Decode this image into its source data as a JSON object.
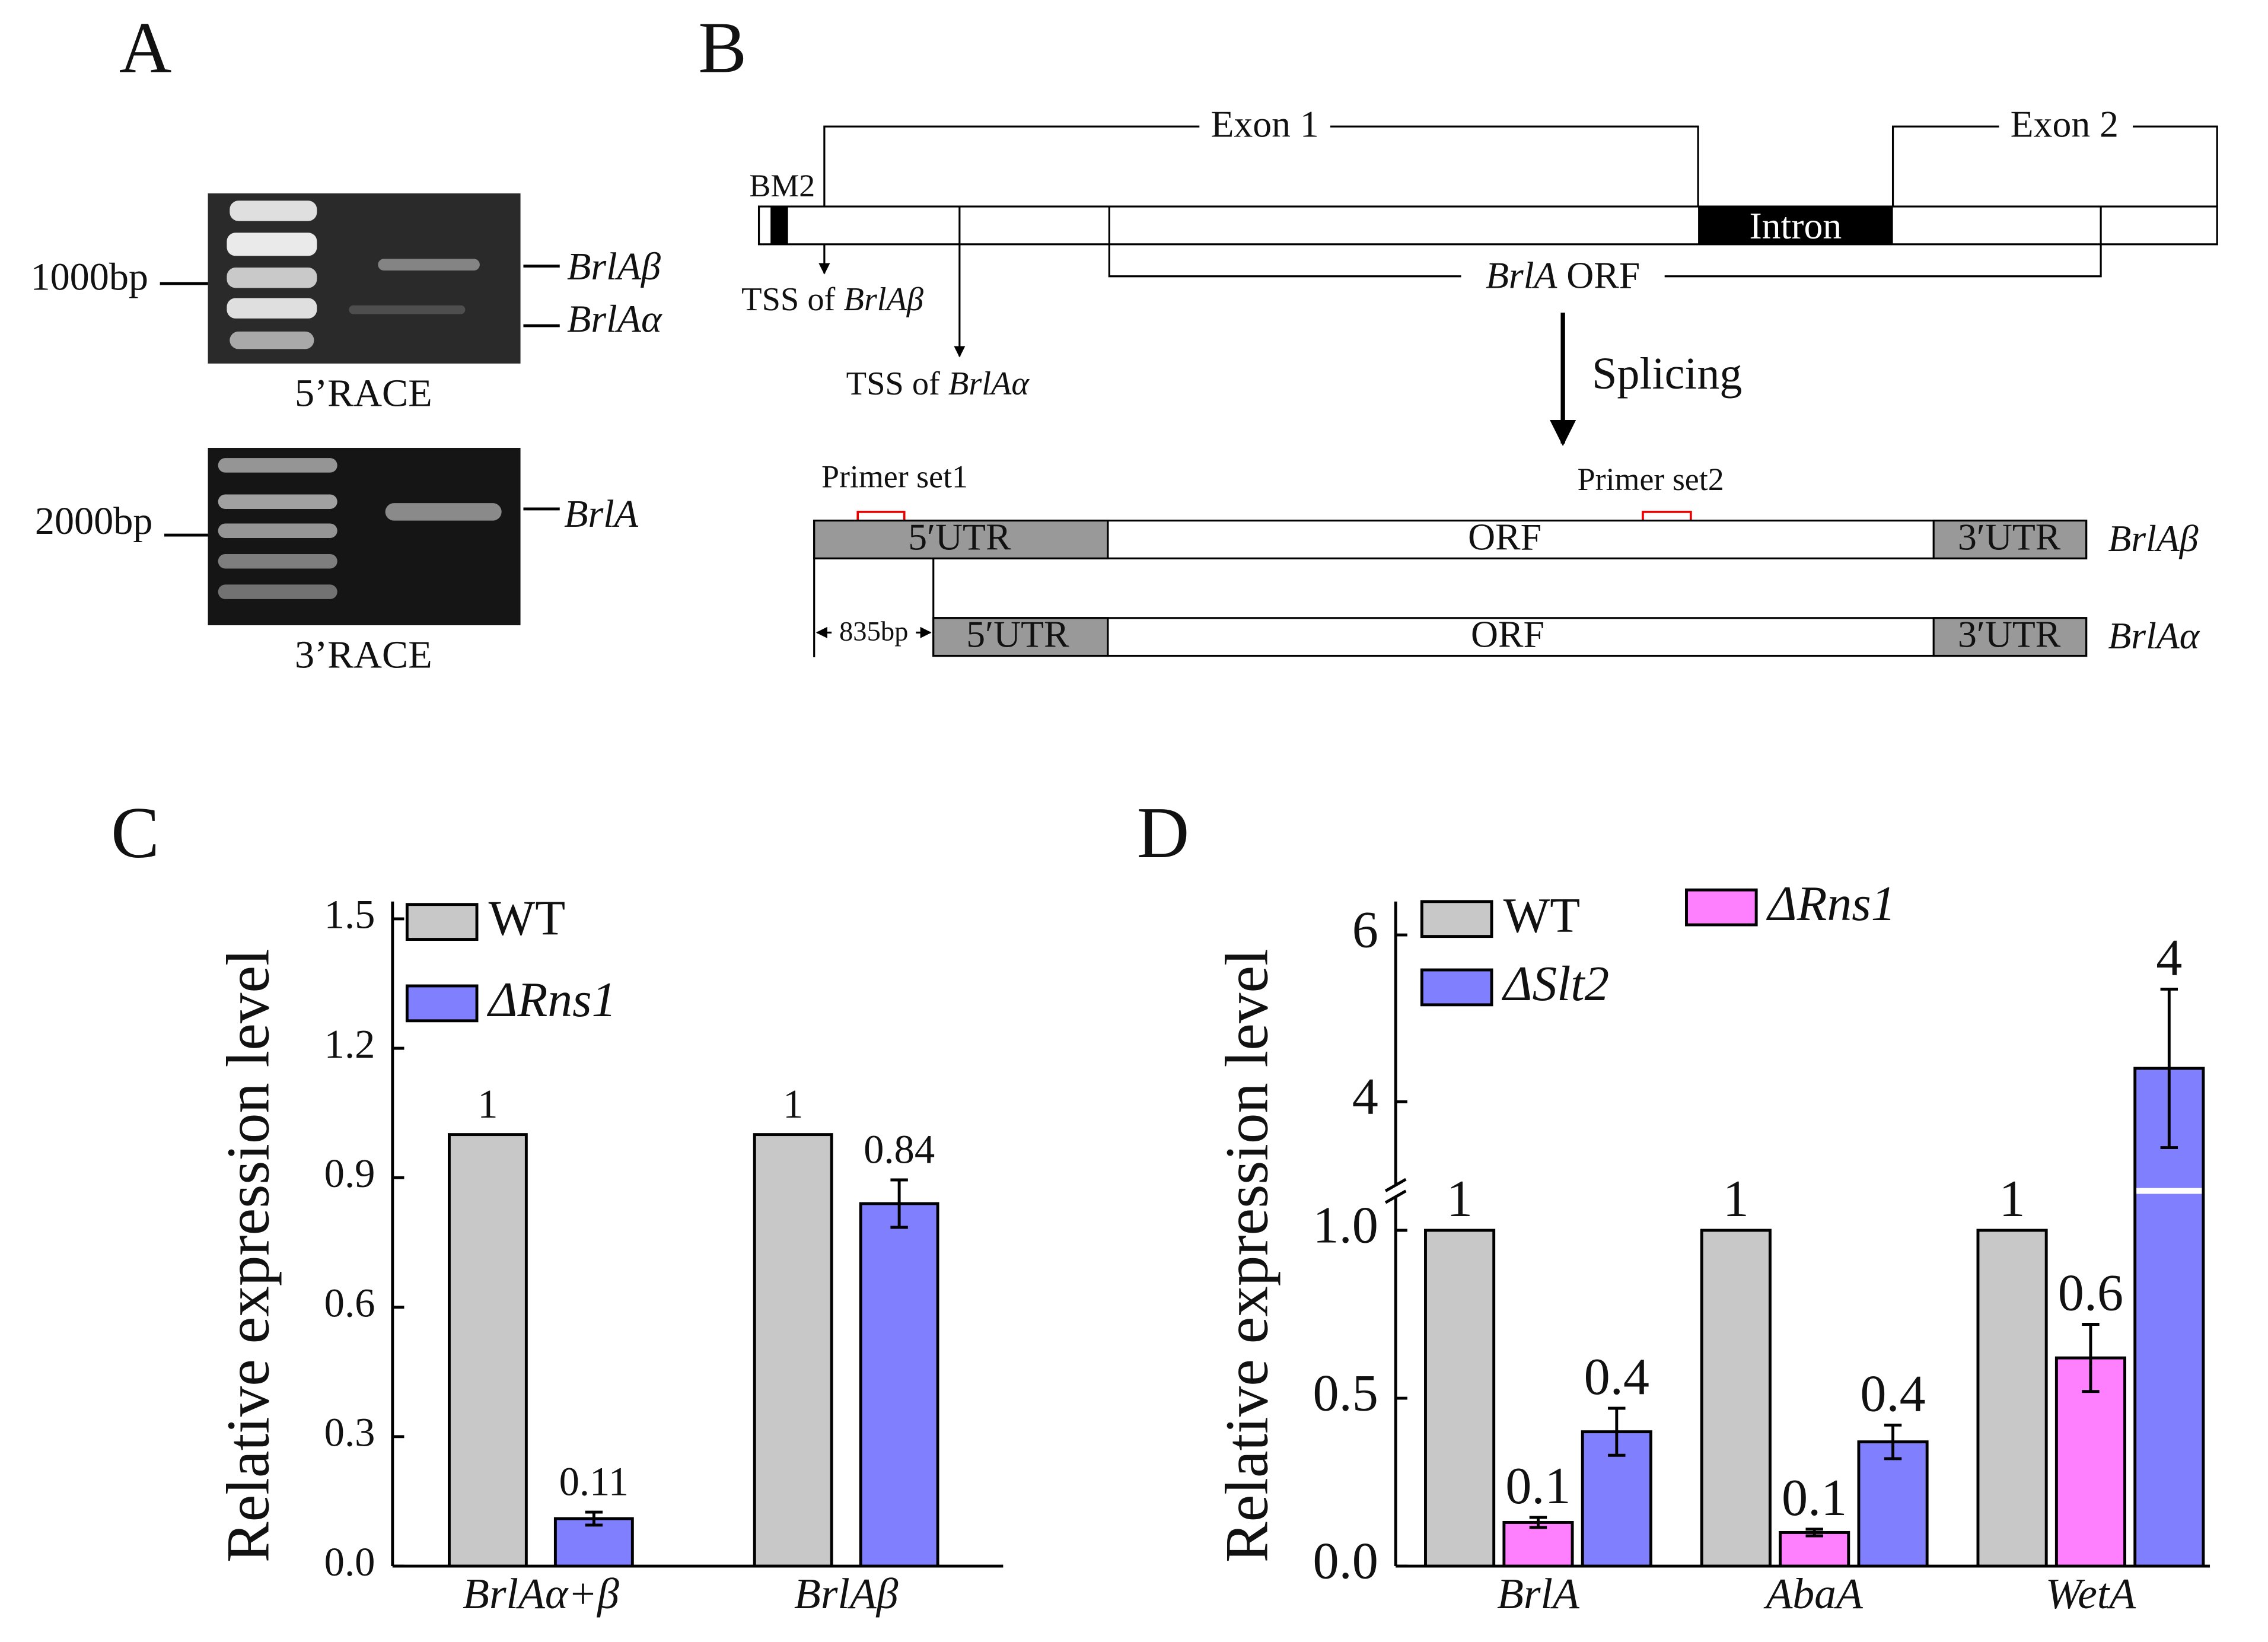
{
  "panel_a": {
    "label": "A",
    "gel_top": {
      "marker": "1000bp",
      "bands": [
        "BrlAβ",
        "BrlAα"
      ],
      "caption": "5’RACE"
    },
    "gel_bottom": {
      "marker": "2000bp",
      "bands": [
        "BrlA"
      ],
      "caption": "3’RACE"
    }
  },
  "panel_b": {
    "label": "B",
    "exon1": "Exon 1",
    "exon2": "Exon 2",
    "bm2": "BM2",
    "intron": "Intron",
    "tss_beta": [
      "TSS of ",
      "BrlAβ"
    ],
    "tss_alpha": [
      "TSS of ",
      "BrlAα"
    ],
    "orf": [
      "BrlA",
      " ORF"
    ],
    "splicing": "Splicing",
    "primer1": "Primer set1",
    "primer2": "Primer set2",
    "transcripts": [
      {
        "name": "BrlAβ",
        "utr5": "5′UTR",
        "orf": "ORF",
        "utr3": "3′UTR"
      },
      {
        "name": "BrlAα",
        "utr5": "5′UTR",
        "orf": "ORF",
        "utr3": "3′UTR",
        "offset": "835bp"
      }
    ]
  },
  "chart_data": [
    {
      "type": "bar",
      "panel": "C",
      "y_label": "Relative expression level",
      "categories": [
        "BrlAα+β",
        "BrlAβ"
      ],
      "series": [
        {
          "name": "WT",
          "color": "#c8c8c8",
          "values": [
            1,
            1
          ]
        },
        {
          "name": "ΔRns1",
          "color": "#8080ff",
          "values": [
            0.11,
            0.84
          ],
          "errors": [
            0.015,
            0.055
          ]
        }
      ],
      "ylim": [
        0,
        1.54
      ],
      "yticks": [
        {
          "value": 0,
          "label": "0.0"
        },
        0.3,
        0.6,
        0.9,
        1.2,
        1.5
      ],
      "legend": "upper left"
    },
    {
      "type": "bar",
      "panel": "D",
      "y_label": "Relative expression level",
      "categories": [
        "BrlA",
        "AbaA",
        "WetA"
      ],
      "series": [
        {
          "name": "WT",
          "color": "#c8c8c8",
          "values": [
            1,
            1,
            1
          ]
        },
        {
          "name": "ΔRns1",
          "color": "#ff80ff",
          "values": [
            0.13,
            0.1,
            0.62
          ],
          "errors": [
            0.015,
            0.01,
            0.1
          ],
          "value_labels": [
            "0.1",
            "0.1",
            "0.6"
          ]
        },
        {
          "name": "ΔSlt2",
          "color": "#8080ff",
          "values": [
            0.4,
            0.37,
            4.4
          ],
          "errors": [
            0.07,
            0.05,
            0.95
          ],
          "value_labels": [
            "0.4",
            "0.4",
            "4"
          ]
        }
      ],
      "ylim": [
        0,
        6.4
      ],
      "ybreak": [
        1.1,
        3
      ],
      "yticks": [
        {
          "value": 0,
          "label": "0.0"
        },
        0.5,
        {
          "value": 1,
          "label": "1.0"
        },
        4,
        6
      ],
      "legend": "upper left"
    }
  ]
}
